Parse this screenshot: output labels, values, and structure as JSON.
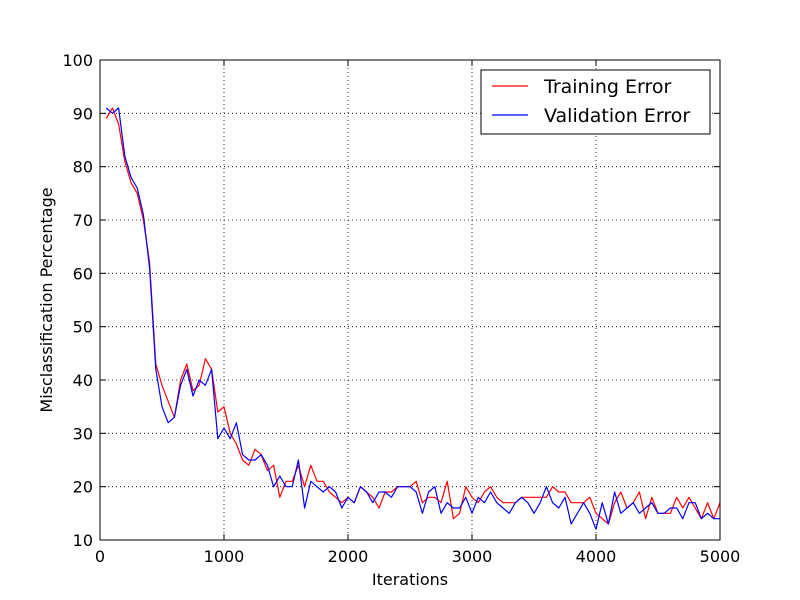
{
  "chart_data": {
    "type": "line",
    "title": "",
    "xlabel": "Iterations",
    "ylabel": "Misclassification Percentage",
    "xlim": [
      0,
      5000
    ],
    "ylim": [
      10,
      100
    ],
    "xticks": [
      "0",
      "1000",
      "2000",
      "3000",
      "4000",
      "5000"
    ],
    "yticks": [
      "10",
      "20",
      "30",
      "40",
      "50",
      "60",
      "70",
      "80",
      "90",
      "100"
    ],
    "grid": true,
    "legend_position": "top-right",
    "x": [
      50,
      100,
      150,
      200,
      250,
      300,
      350,
      400,
      450,
      500,
      550,
      600,
      650,
      700,
      750,
      800,
      850,
      900,
      950,
      1000,
      1050,
      1100,
      1150,
      1200,
      1250,
      1300,
      1350,
      1400,
      1450,
      1500,
      1550,
      1600,
      1650,
      1700,
      1750,
      1800,
      1850,
      1900,
      1950,
      2000,
      2050,
      2100,
      2150,
      2200,
      2250,
      2300,
      2350,
      2400,
      2450,
      2500,
      2550,
      2600,
      2650,
      2700,
      2750,
      2800,
      2850,
      2900,
      2950,
      3000,
      3050,
      3100,
      3150,
      3200,
      3250,
      3300,
      3350,
      3400,
      3450,
      3500,
      3550,
      3600,
      3650,
      3700,
      3750,
      3800,
      3850,
      3900,
      3950,
      4000,
      4050,
      4100,
      4150,
      4200,
      4250,
      4300,
      4350,
      4400,
      4450,
      4500,
      4550,
      4600,
      4650,
      4700,
      4750,
      4800,
      4850,
      4900,
      4950,
      5000
    ],
    "series": [
      {
        "name": "Training Error",
        "color": "#ff0000",
        "values": [
          89,
          91,
          88,
          81,
          77,
          75,
          70,
          62,
          43,
          39,
          36,
          33,
          40,
          43,
          38,
          39,
          44,
          42,
          34,
          35,
          30,
          28,
          25,
          24,
          27,
          26,
          23,
          24,
          18,
          21,
          21,
          24,
          20,
          24,
          21,
          21,
          19,
          18,
          17,
          18,
          17,
          20,
          19,
          18,
          16,
          19,
          19,
          20,
          20,
          20,
          21,
          17,
          18,
          18,
          17,
          21,
          14,
          15,
          20,
          18,
          17,
          19,
          20,
          18,
          17,
          17,
          17,
          18,
          18,
          18,
          18,
          18,
          20,
          19,
          19,
          17,
          17,
          17,
          18,
          15,
          14,
          13,
          17,
          19,
          16,
          17,
          19,
          14,
          18,
          15,
          15,
          15,
          18,
          16,
          18,
          16,
          14,
          17,
          14,
          17
        ]
      },
      {
        "name": "Validation Error",
        "color": "#0000ff",
        "values": [
          91,
          90,
          91,
          82,
          78,
          76,
          71,
          61,
          42,
          35,
          32,
          33,
          39,
          42,
          37,
          40,
          39,
          42,
          29,
          31,
          29,
          32,
          26,
          25,
          25,
          26,
          24,
          20,
          22,
          20,
          20,
          25,
          16,
          21,
          20,
          19,
          20,
          19,
          16,
          18,
          17,
          20,
          19,
          17,
          19,
          19,
          18,
          20,
          20,
          20,
          19,
          15,
          19,
          20,
          15,
          17,
          16,
          16,
          18,
          15,
          18,
          17,
          19,
          17,
          16,
          15,
          17,
          18,
          17,
          15,
          17,
          20,
          17,
          16,
          18,
          13,
          15,
          17,
          15,
          12,
          17,
          13,
          19,
          15,
          16,
          17,
          15,
          16,
          17,
          15,
          15,
          16,
          16,
          14,
          17,
          17,
          14,
          15,
          14,
          14
        ]
      }
    ]
  }
}
